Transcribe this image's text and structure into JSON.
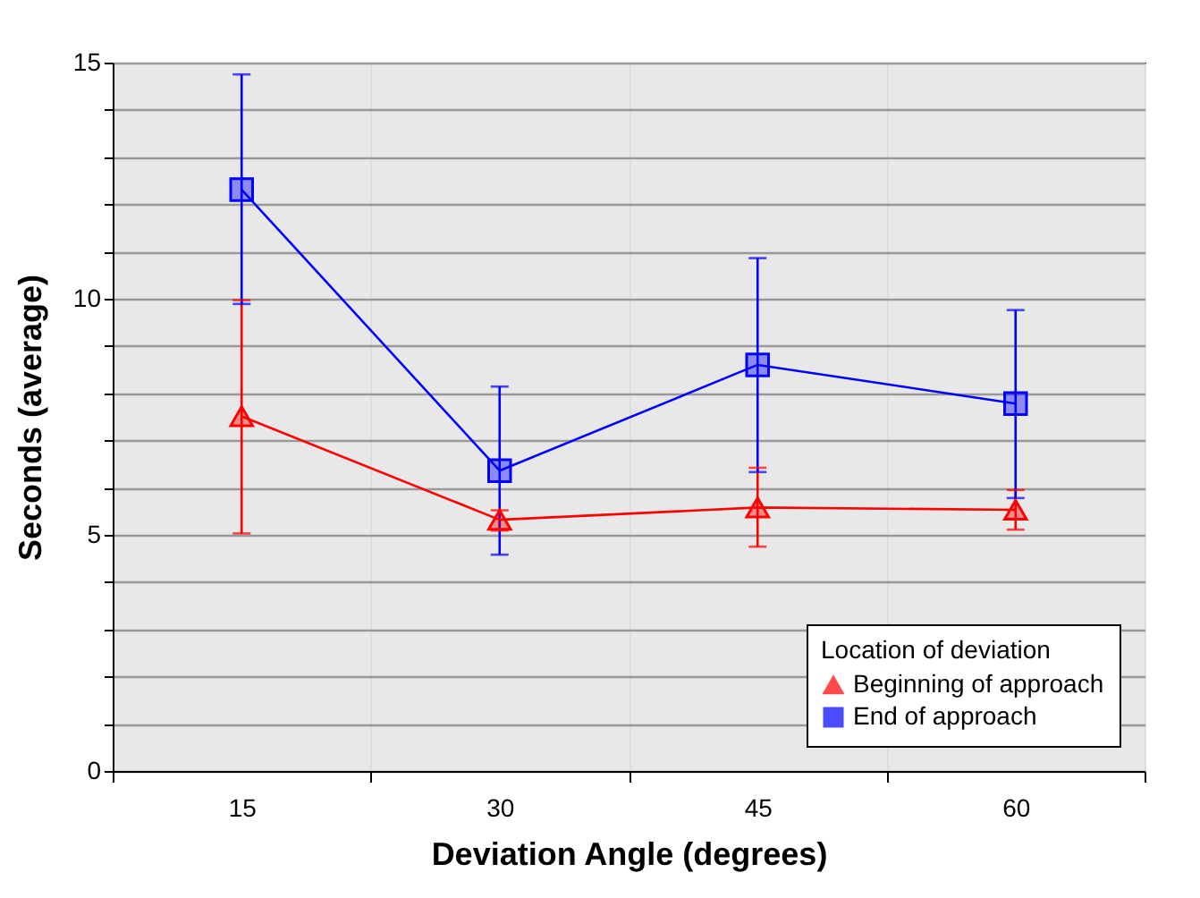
{
  "chart_data": {
    "type": "line",
    "xlabel": "Deviation Angle (degrees)",
    "ylabel": "Seconds (average)",
    "legend_title": "Location of deviation",
    "categories": [
      "15",
      "30",
      "45",
      "60"
    ],
    "series": [
      {
        "name": "Beginning of approach",
        "color": "#ff0000",
        "marker": "triangle",
        "values": [
          7.51,
          5.32,
          5.58,
          5.53
        ],
        "errors": [
          [
            5.03,
            9.97
          ],
          [
            5.09,
            5.52
          ],
          [
            4.75,
            6.42
          ],
          [
            5.11,
            5.95
          ]
        ]
      },
      {
        "name": "End of approach",
        "color": "#0000ff",
        "marker": "square",
        "values": [
          12.31,
          6.36,
          8.6,
          7.78
        ],
        "errors": [
          [
            9.89,
            14.75
          ],
          [
            4.58,
            8.14
          ],
          [
            6.33,
            10.86
          ],
          [
            5.78,
            9.76
          ]
        ]
      }
    ],
    "ylim": [
      0,
      15
    ],
    "yticks": [
      0,
      {
        "value": 1,
        "label": null
      },
      {
        "value": 2,
        "label": null
      },
      {
        "value": 3,
        "label": null
      },
      {
        "value": 4,
        "label": null
      },
      5,
      {
        "value": 6,
        "label": null
      },
      {
        "value": 7,
        "label": null
      },
      {
        "value": 8,
        "label": null
      },
      {
        "value": 9,
        "label": null
      },
      10,
      {
        "value": 11,
        "label": null
      },
      {
        "value": 12,
        "label": null
      },
      {
        "value": 13,
        "label": null
      },
      {
        "value": 14,
        "label": null
      },
      15
    ],
    "grid": true,
    "legend": "bottom right",
    "line_style": "solid"
  }
}
